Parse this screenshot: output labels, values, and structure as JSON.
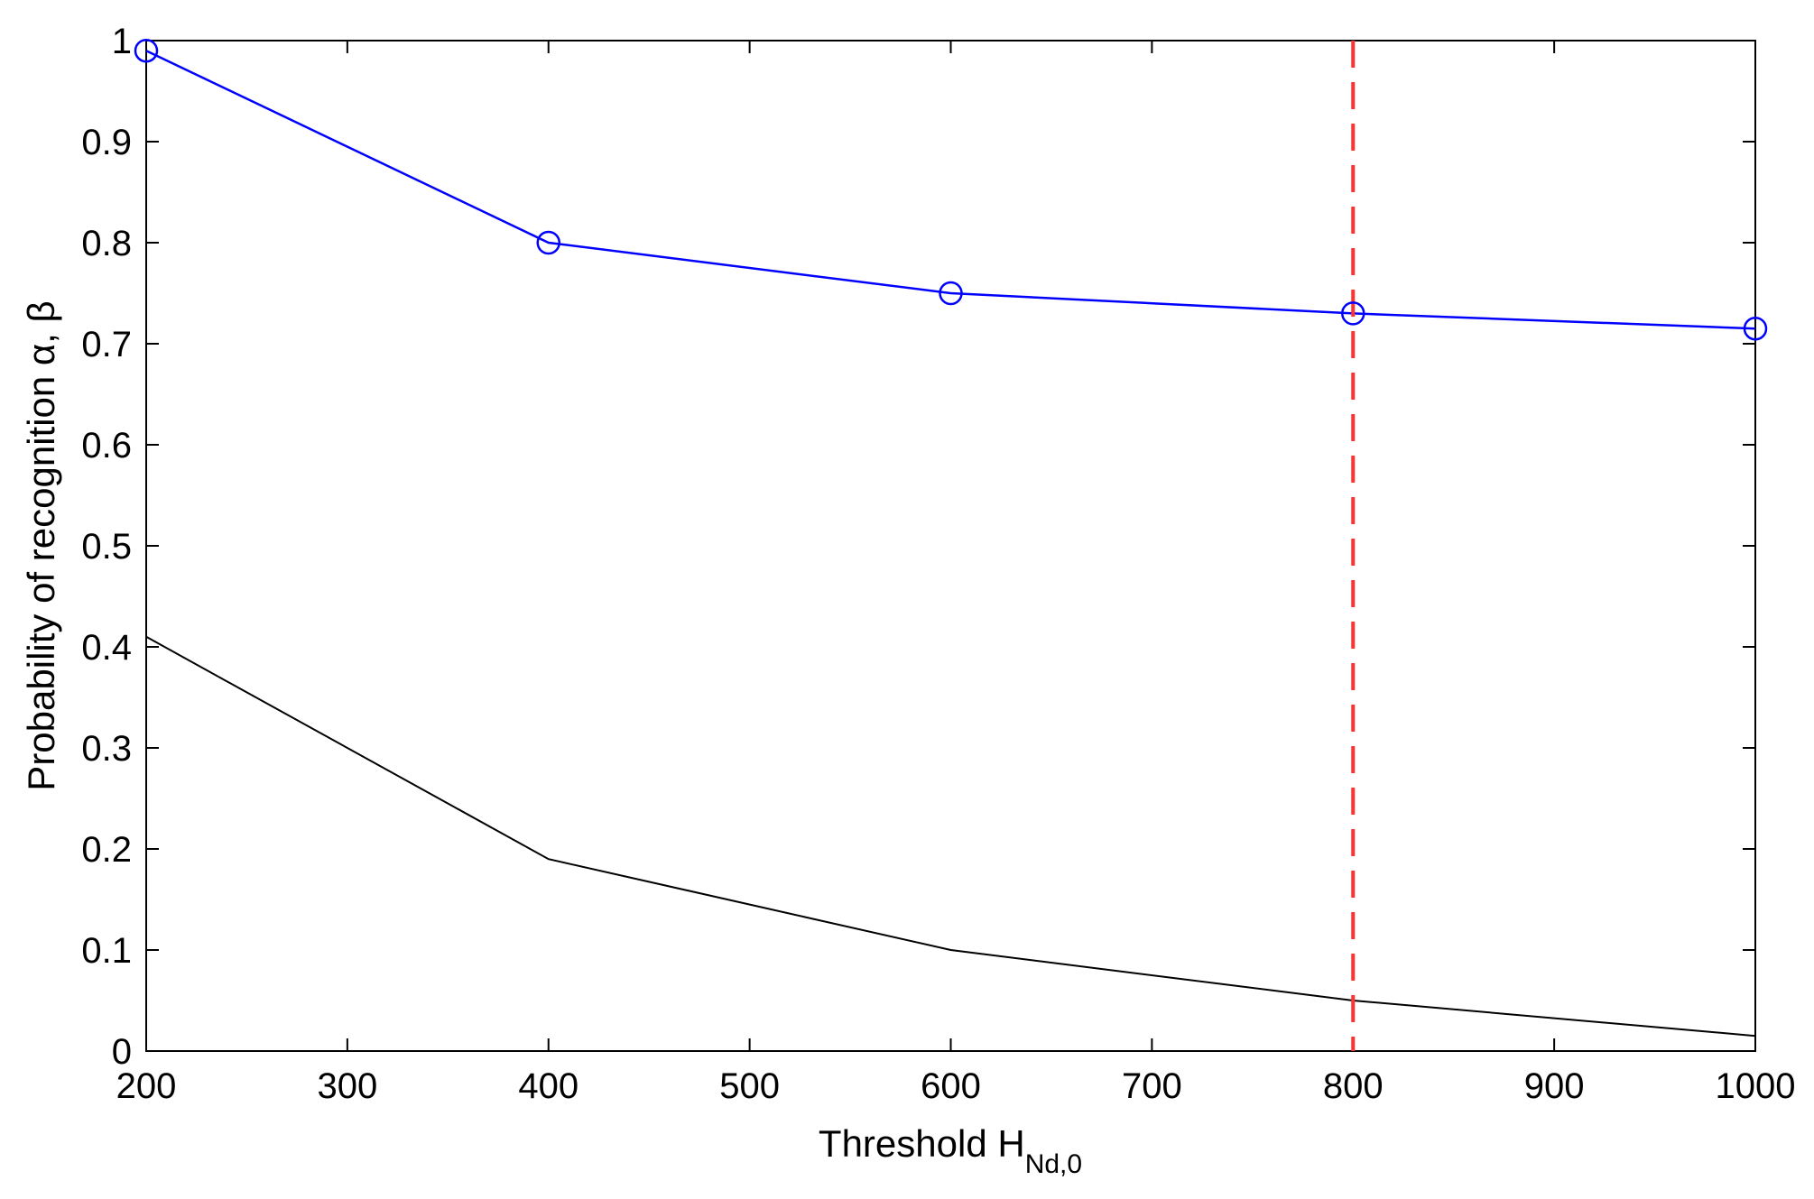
{
  "chart_data": {
    "type": "line",
    "xlabel": {
      "main": "Threshold H",
      "subscript": "Nd,0"
    },
    "ylabel": "Probability of  recognition  α,  β",
    "xlim": [
      200,
      1000
    ],
    "ylim": [
      0,
      1
    ],
    "xticks": [
      200,
      300,
      400,
      500,
      600,
      700,
      800,
      900,
      1000
    ],
    "yticks": [
      0,
      0.1,
      0.2,
      0.3,
      0.4,
      0.5,
      0.6,
      0.7,
      0.8,
      0.9,
      1
    ],
    "ytick_labels": [
      "0",
      "0.1",
      "0.2",
      "0.3",
      "0.4",
      "0.5",
      "0.6",
      "0.7",
      "0.8",
      "0.9",
      "1"
    ],
    "grid": false,
    "series": [
      {
        "x": [
          200,
          400,
          600,
          800,
          1000
        ],
        "y": [
          0.99,
          0.8,
          0.75,
          0.73,
          0.715
        ],
        "color": "#0000ff",
        "marker": "circle"
      },
      {
        "x": [
          200,
          400,
          600,
          800,
          1000
        ],
        "y": [
          0.41,
          0.19,
          0.1,
          0.05,
          0.015
        ],
        "color": "#000000",
        "marker": "none"
      }
    ],
    "vline": {
      "x": 800,
      "color": "#ff3333",
      "style": "dashed"
    }
  }
}
